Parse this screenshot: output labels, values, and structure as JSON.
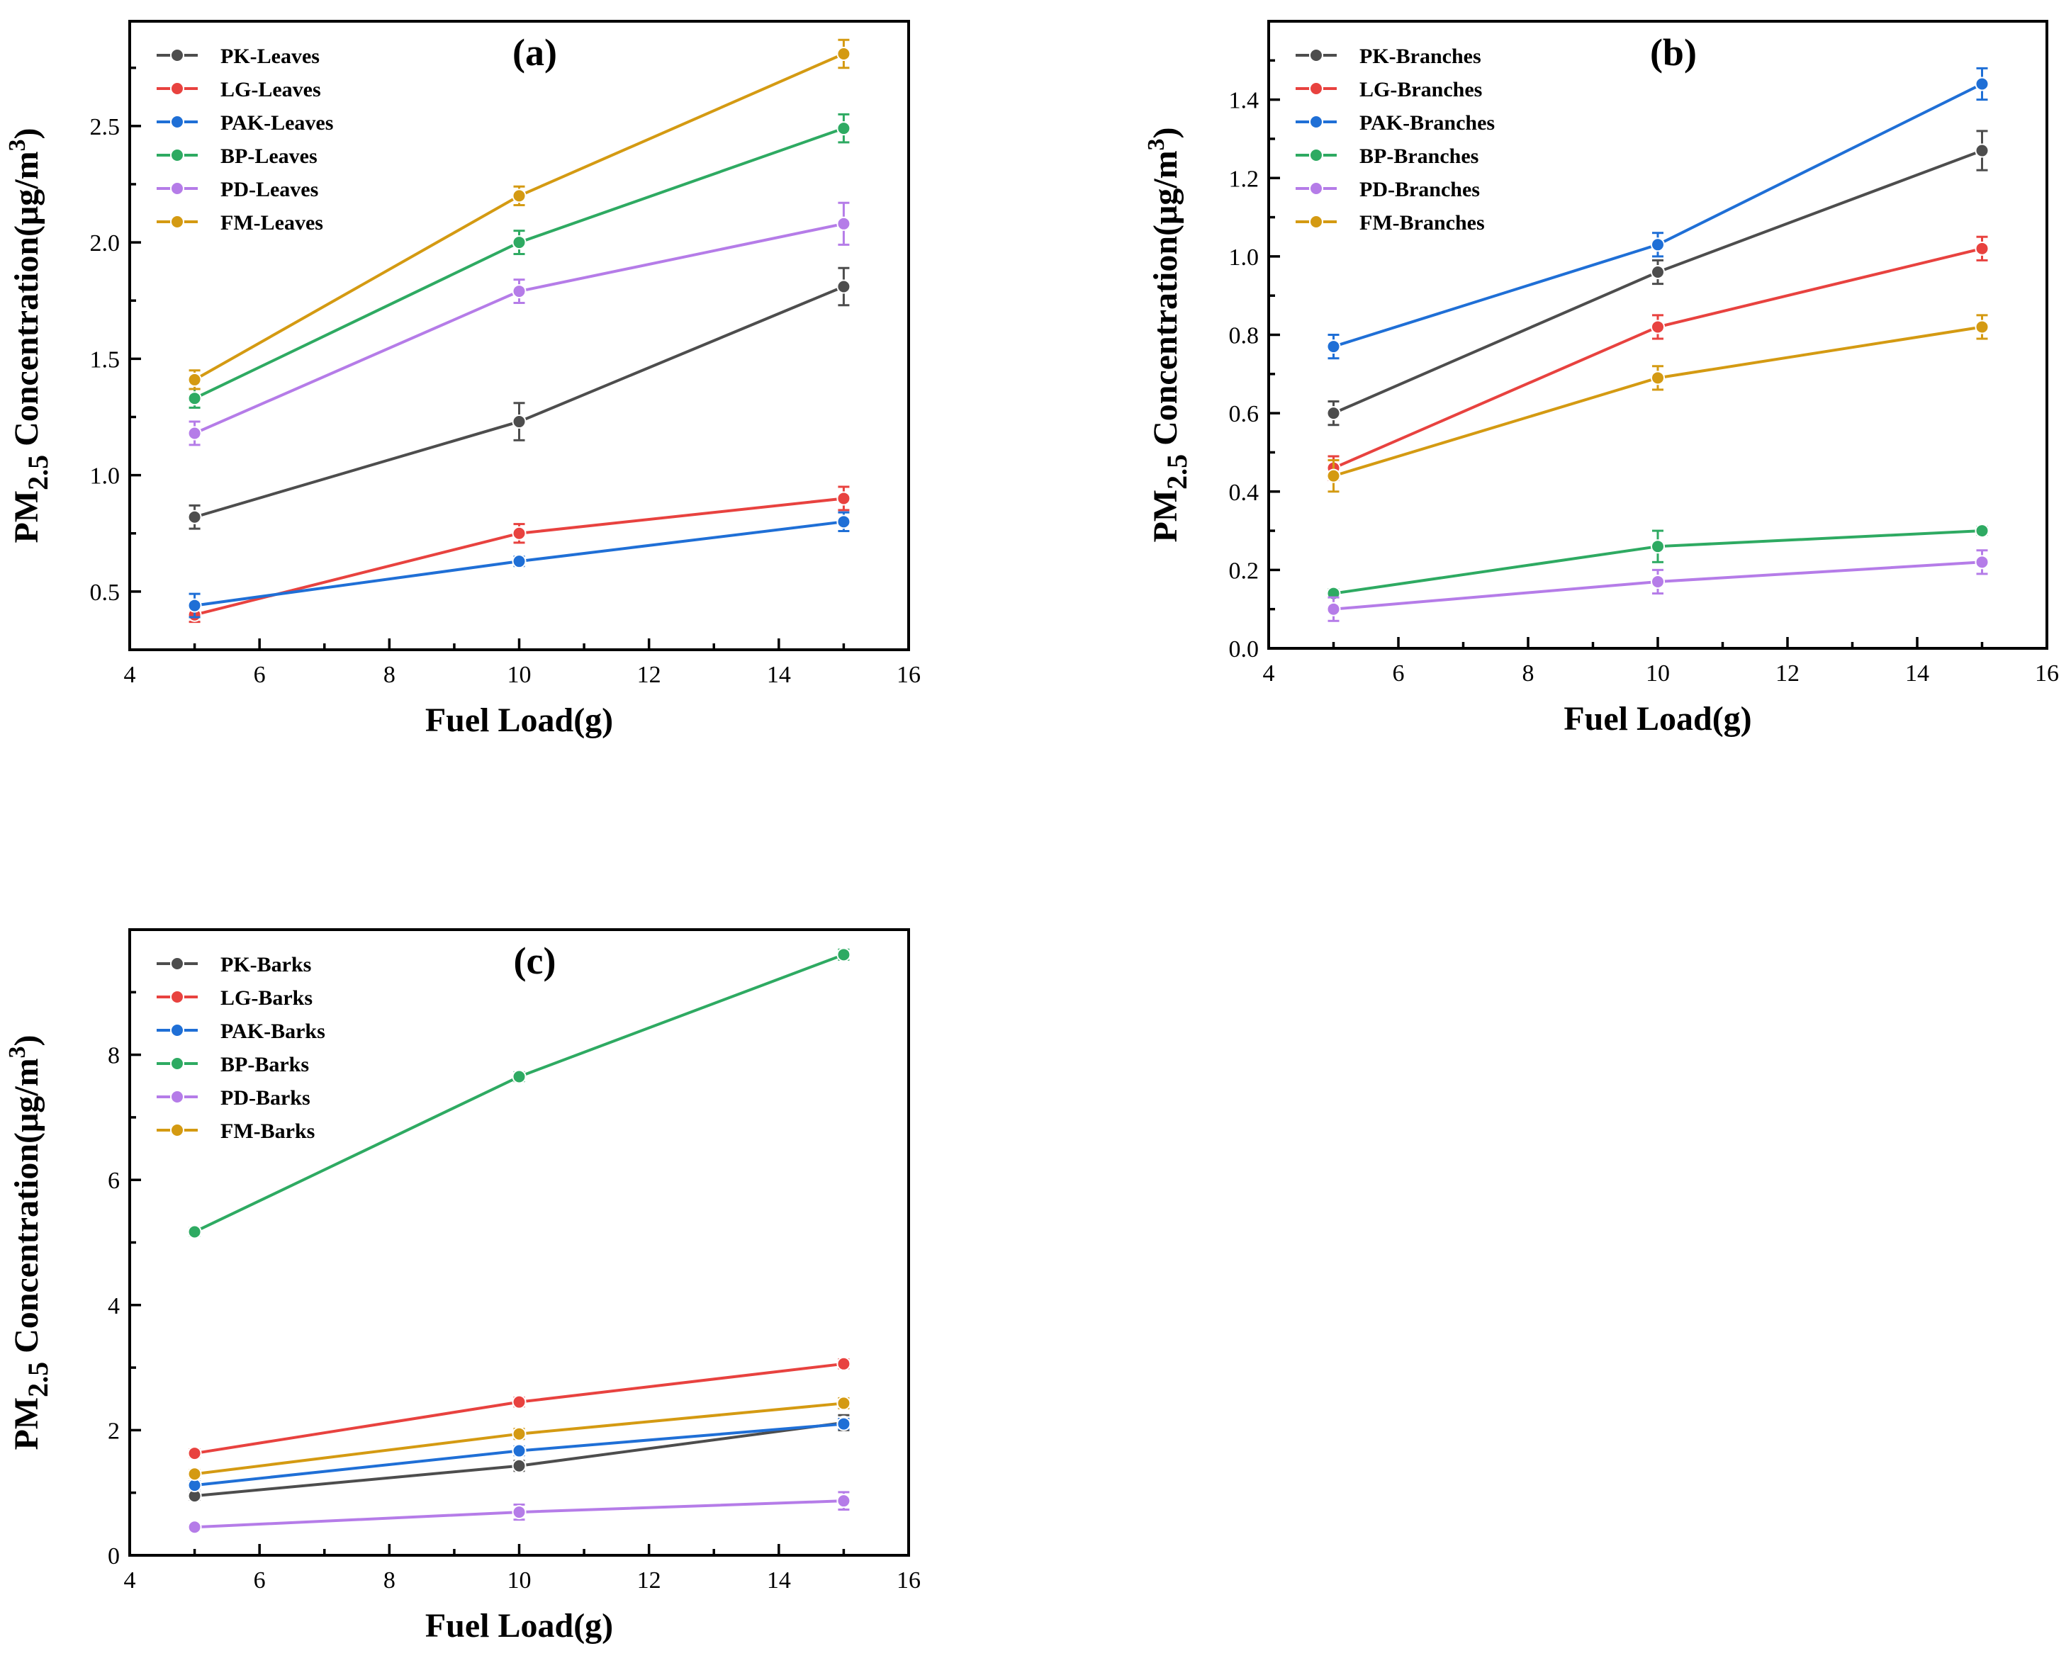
{
  "chart_data": [
    {
      "type": "line",
      "title": "(a)",
      "xlabel": "Fuel Load(g)",
      "ylabel_main": "PM",
      "ylabel_sub": "2.5",
      "ylabel_rest": " Concentration(μg/m",
      "ylabel_sup": "3",
      "ylabel_close": ")",
      "xlim": [
        4,
        16
      ],
      "ylim": [
        0.25,
        2.95
      ],
      "xticks": [
        4,
        6,
        8,
        10,
        12,
        14,
        16
      ],
      "xtick_labels": [
        "4",
        "6",
        "8",
        "10",
        "12",
        "14",
        "16"
      ],
      "yticks": [
        0.5,
        1.0,
        1.5,
        2.0,
        2.5
      ],
      "ytick_labels": [
        "0.5",
        "1.0",
        "1.5",
        "2.0",
        "2.5"
      ],
      "x": [
        5,
        10,
        15
      ],
      "legend": "top-left",
      "series": [
        {
          "name": "PK-Leaves",
          "color": "#4d4d4d",
          "values": [
            0.82,
            1.23,
            1.81
          ],
          "errors": [
            0.05,
            0.08,
            0.08
          ]
        },
        {
          "name": "LG-Leaves",
          "color": "#e8423f",
          "values": [
            0.4,
            0.75,
            0.9
          ],
          "errors": [
            0.03,
            0.04,
            0.05
          ]
        },
        {
          "name": "PAK-Leaves",
          "color": "#1f6fd6",
          "values": [
            0.44,
            0.63,
            0.8
          ],
          "errors": [
            0.05,
            0.02,
            0.04
          ]
        },
        {
          "name": "BP-Leaves",
          "color": "#2eaa62",
          "values": [
            1.33,
            2.0,
            2.49
          ],
          "errors": [
            0.04,
            0.05,
            0.06
          ]
        },
        {
          "name": "PD-Leaves",
          "color": "#b57ce8",
          "values": [
            1.18,
            1.79,
            2.08
          ],
          "errors": [
            0.05,
            0.05,
            0.09
          ]
        },
        {
          "name": "FM-Leaves",
          "color": "#d49a12",
          "values": [
            1.41,
            2.2,
            2.81
          ],
          "errors": [
            0.04,
            0.04,
            0.06
          ]
        }
      ]
    },
    {
      "type": "line",
      "title": "(b)",
      "xlabel": "Fuel Load(g)",
      "ylabel_main": "PM",
      "ylabel_sub": "2.5",
      "ylabel_rest": " Concentration(μg/m",
      "ylabel_sup": "3",
      "ylabel_close": ")",
      "xlim": [
        4,
        16
      ],
      "ylim": [
        0.0,
        1.6
      ],
      "xticks": [
        4,
        6,
        8,
        10,
        12,
        14,
        16
      ],
      "xtick_labels": [
        "4",
        "6",
        "8",
        "10",
        "12",
        "14",
        "16"
      ],
      "yticks": [
        0.0,
        0.2,
        0.4,
        0.6,
        0.8,
        1.0,
        1.2,
        1.4
      ],
      "ytick_labels": [
        "0.0",
        "0.2",
        "0.4",
        "0.6",
        "0.8",
        "1.0",
        "1.2",
        "1.4"
      ],
      "x": [
        5,
        10,
        15
      ],
      "legend": "top-left",
      "series": [
        {
          "name": "PK-Branches",
          "color": "#4d4d4d",
          "values": [
            0.6,
            0.96,
            1.27
          ],
          "errors": [
            0.03,
            0.03,
            0.05
          ]
        },
        {
          "name": "LG-Branches",
          "color": "#e8423f",
          "values": [
            0.46,
            0.82,
            1.02
          ],
          "errors": [
            0.03,
            0.03,
            0.03
          ]
        },
        {
          "name": "PAK-Branches",
          "color": "#1f6fd6",
          "values": [
            0.77,
            1.03,
            1.44
          ],
          "errors": [
            0.03,
            0.03,
            0.04
          ]
        },
        {
          "name": "BP-Branches",
          "color": "#2eaa62",
          "values": [
            0.14,
            0.26,
            0.3
          ],
          "errors": [
            0.01,
            0.04,
            0.01
          ]
        },
        {
          "name": "PD-Branches",
          "color": "#b57ce8",
          "values": [
            0.1,
            0.17,
            0.22
          ],
          "errors": [
            0.03,
            0.03,
            0.03
          ]
        },
        {
          "name": "FM-Branches",
          "color": "#d49a12",
          "values": [
            0.44,
            0.69,
            0.82
          ],
          "errors": [
            0.04,
            0.03,
            0.03
          ]
        }
      ]
    },
    {
      "type": "line",
      "title": "(c)",
      "xlabel": "Fuel Load(g)",
      "ylabel_main": "PM",
      "ylabel_sub": "2.5",
      "ylabel_rest": " Concentration(μg/m",
      "ylabel_sup": "3",
      "ylabel_close": ")",
      "xlim": [
        4,
        16
      ],
      "ylim": [
        0,
        10
      ],
      "xticks": [
        4,
        6,
        8,
        10,
        12,
        14,
        16
      ],
      "xtick_labels": [
        "4",
        "6",
        "8",
        "10",
        "12",
        "14",
        "16"
      ],
      "yticks": [
        0,
        2,
        4,
        6,
        8
      ],
      "ytick_labels": [
        "0",
        "2",
        "4",
        "6",
        "8"
      ],
      "x": [
        5,
        10,
        15
      ],
      "legend": "top-left",
      "series": [
        {
          "name": "PK-Barks",
          "color": "#4d4d4d",
          "values": [
            0.95,
            1.43,
            2.12
          ],
          "errors": [
            0.06,
            0.08,
            0.12
          ]
        },
        {
          "name": "LG-Barks",
          "color": "#e8423f",
          "values": [
            1.63,
            2.45,
            3.06
          ],
          "errors": [
            0.06,
            0.07,
            0.07
          ]
        },
        {
          "name": "PAK-Barks",
          "color": "#1f6fd6",
          "values": [
            1.12,
            1.67,
            2.1
          ],
          "errors": [
            0.06,
            0.07,
            0.08
          ]
        },
        {
          "name": "BP-Barks",
          "color": "#2eaa62",
          "values": [
            5.17,
            7.65,
            9.6
          ],
          "errors": [
            0.06,
            0.07,
            0.08
          ]
        },
        {
          "name": "PD-Barks",
          "color": "#b57ce8",
          "values": [
            0.45,
            0.69,
            0.87
          ],
          "errors": [
            0.05,
            0.12,
            0.14
          ]
        },
        {
          "name": "FM-Barks",
          "color": "#d49a12",
          "values": [
            1.3,
            1.94,
            2.43
          ],
          "errors": [
            0.06,
            0.08,
            0.08
          ]
        }
      ]
    }
  ]
}
